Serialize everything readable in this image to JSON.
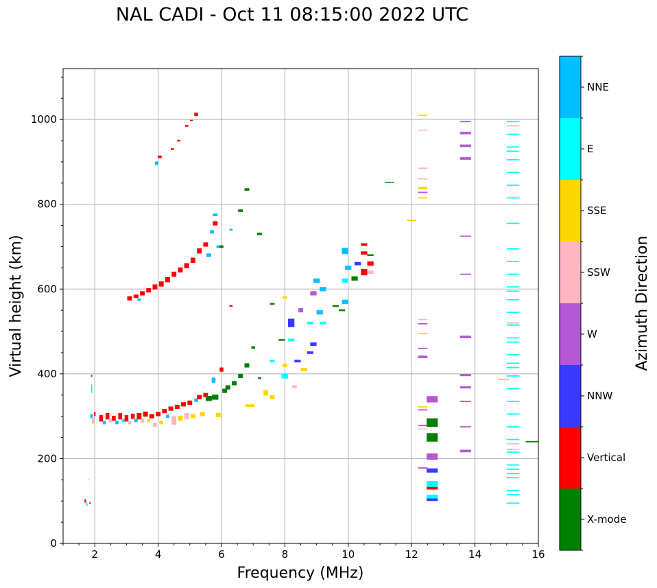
{
  "chart_data": {
    "type": "scatter",
    "title": "NAL CADI - Oct 11 08:15:00 2022 UTC",
    "xlabel": "Frequency (MHz)",
    "ylabel": "Virtual height (km)",
    "xlim": [
      1,
      16
    ],
    "ylim": [
      0,
      1120
    ],
    "xticks": [
      2,
      4,
      6,
      8,
      10,
      12,
      14,
      16
    ],
    "yticks": [
      0,
      200,
      400,
      600,
      800,
      1000
    ],
    "grid": true,
    "colorbar": {
      "label": "Azimuth Direction",
      "categories": [
        {
          "name": "X-mode",
          "color": "#008000"
        },
        {
          "name": "Vertical",
          "color": "#ff0000"
        },
        {
          "name": "NNW",
          "color": "#3a3aff"
        },
        {
          "name": "W",
          "color": "#b558d6"
        },
        {
          "name": "SSW",
          "color": "#ffb6c1"
        },
        {
          "name": "SSE",
          "color": "#ffd700"
        },
        {
          "name": "E",
          "color": "#00ffff"
        },
        {
          "name": "NNE",
          "color": "#00bfff"
        }
      ]
    },
    "point_format": [
      "frequency_MHz",
      "height_km",
      "category_index",
      "freq_span_MHz",
      "height_span_km"
    ],
    "points": [
      [
        1.7,
        100,
        1,
        0.05,
        8
      ],
      [
        1.75,
        92,
        6,
        0.05,
        6
      ],
      [
        1.8,
        150,
        4,
        0.04,
        3
      ],
      [
        1.85,
        95,
        1,
        0.04,
        5
      ],
      [
        1.9,
        395,
        2,
        0.04,
        5
      ],
      [
        1.9,
        365,
        6,
        0.04,
        20
      ],
      [
        1.9,
        300,
        7,
        0.08,
        10
      ],
      [
        1.95,
        290,
        4,
        0.08,
        15
      ],
      [
        2.0,
        305,
        1,
        0.05,
        10
      ],
      [
        2.2,
        295,
        1,
        0.12,
        15
      ],
      [
        2.3,
        285,
        7,
        0.1,
        8
      ],
      [
        2.4,
        300,
        1,
        0.12,
        15
      ],
      [
        2.5,
        290,
        4,
        0.1,
        10
      ],
      [
        2.6,
        295,
        1,
        0.12,
        12
      ],
      [
        2.7,
        285,
        7,
        0.1,
        8
      ],
      [
        2.8,
        300,
        1,
        0.12,
        15
      ],
      [
        2.9,
        290,
        6,
        0.1,
        8
      ],
      [
        3.0,
        295,
        1,
        0.12,
        15
      ],
      [
        3.1,
        285,
        4,
        0.1,
        8
      ],
      [
        3.2,
        300,
        1,
        0.12,
        12
      ],
      [
        3.3,
        290,
        7,
        0.1,
        8
      ],
      [
        3.4,
        300,
        1,
        0.15,
        15
      ],
      [
        3.5,
        290,
        4,
        0.1,
        10
      ],
      [
        3.6,
        305,
        1,
        0.15,
        12
      ],
      [
        3.7,
        290,
        5,
        0.1,
        8
      ],
      [
        3.8,
        300,
        1,
        0.15,
        10
      ],
      [
        3.9,
        280,
        4,
        0.12,
        10
      ],
      [
        4.0,
        305,
        1,
        0.15,
        10
      ],
      [
        4.1,
        285,
        5,
        0.12,
        8
      ],
      [
        4.2,
        312,
        1,
        0.15,
        10
      ],
      [
        4.3,
        300,
        7,
        0.1,
        8
      ],
      [
        4.4,
        318,
        1,
        0.15,
        10
      ],
      [
        4.5,
        290,
        4,
        0.15,
        20
      ],
      [
        4.6,
        322,
        1,
        0.15,
        10
      ],
      [
        4.7,
        295,
        5,
        0.15,
        12
      ],
      [
        4.8,
        328,
        1,
        0.15,
        10
      ],
      [
        4.9,
        300,
        4,
        0.15,
        15
      ],
      [
        5.0,
        332,
        1,
        0.15,
        10
      ],
      [
        5.1,
        300,
        5,
        0.15,
        10
      ],
      [
        5.2,
        338,
        7,
        0.12,
        8
      ],
      [
        5.3,
        345,
        1,
        0.15,
        10
      ],
      [
        5.4,
        305,
        5,
        0.15,
        10
      ],
      [
        5.5,
        350,
        1,
        0.15,
        10
      ],
      [
        5.6,
        342,
        0,
        0.2,
        12
      ],
      [
        5.75,
        385,
        7,
        0.12,
        12
      ],
      [
        5.8,
        345,
        0,
        0.2,
        12
      ],
      [
        5.9,
        303,
        5,
        0.15,
        10
      ],
      [
        6.0,
        410,
        1,
        0.12,
        10
      ],
      [
        6.1,
        360,
        0,
        0.15,
        10
      ],
      [
        6.2,
        368,
        0,
        0.15,
        10
      ],
      [
        6.4,
        378,
        0,
        0.15,
        10
      ],
      [
        6.6,
        395,
        0,
        0.15,
        10
      ],
      [
        6.8,
        420,
        0,
        0.15,
        10
      ],
      [
        6.9,
        325,
        5,
        0.3,
        6
      ],
      [
        7.0,
        462,
        0,
        0.12,
        6
      ],
      [
        7.2,
        390,
        0,
        0.1,
        4
      ],
      [
        7.4,
        355,
        5,
        0.15,
        12
      ],
      [
        7.6,
        345,
        5,
        0.15,
        10
      ],
      [
        7.6,
        430,
        6,
        0.15,
        6
      ],
      [
        7.6,
        565,
        0,
        0.15,
        4
      ],
      [
        7.9,
        480,
        0,
        0.2,
        4
      ],
      [
        8.0,
        395,
        6,
        0.2,
        12
      ],
      [
        8.0,
        420,
        5,
        0.15,
        8
      ],
      [
        8.0,
        580,
        5,
        0.15,
        6
      ],
      [
        8.2,
        520,
        2,
        0.2,
        20
      ],
      [
        8.2,
        480,
        6,
        0.2,
        6
      ],
      [
        8.3,
        370,
        4,
        0.15,
        6
      ],
      [
        8.4,
        430,
        2,
        0.2,
        6
      ],
      [
        8.5,
        550,
        3,
        0.15,
        10
      ],
      [
        8.6,
        410,
        5,
        0.2,
        8
      ],
      [
        8.8,
        450,
        2,
        0.2,
        6
      ],
      [
        8.8,
        520,
        6,
        0.2,
        6
      ],
      [
        8.9,
        470,
        2,
        0.2,
        8
      ],
      [
        8.9,
        590,
        3,
        0.2,
        10
      ],
      [
        9.0,
        620,
        7,
        0.2,
        10
      ],
      [
        9.1,
        545,
        7,
        0.2,
        10
      ],
      [
        9.2,
        600,
        7,
        0.2,
        10
      ],
      [
        9.2,
        520,
        6,
        0.2,
        6
      ],
      [
        9.6,
        560,
        0,
        0.2,
        4
      ],
      [
        9.8,
        550,
        0,
        0.2,
        4
      ],
      [
        9.9,
        690,
        7,
        0.2,
        15
      ],
      [
        9.9,
        620,
        6,
        0.2,
        10
      ],
      [
        9.9,
        570,
        7,
        0.2,
        10
      ],
      [
        10.0,
        650,
        7,
        0.2,
        10
      ],
      [
        10.2,
        625,
        0,
        0.2,
        10
      ],
      [
        10.3,
        660,
        2,
        0.2,
        8
      ],
      [
        10.5,
        640,
        1,
        0.2,
        15
      ],
      [
        10.5,
        705,
        1,
        0.2,
        6
      ],
      [
        10.5,
        685,
        1,
        0.2,
        8
      ],
      [
        10.7,
        660,
        1,
        0.2,
        10
      ],
      [
        10.7,
        640,
        4,
        0.2,
        8
      ],
      [
        10.7,
        680,
        0,
        0.2,
        4
      ],
      [
        3.1,
        578,
        1,
        0.15,
        10
      ],
      [
        3.3,
        583,
        1,
        0.15,
        8
      ],
      [
        3.4,
        575,
        7,
        0.1,
        6
      ],
      [
        3.5,
        590,
        1,
        0.15,
        10
      ],
      [
        3.7,
        597,
        1,
        0.15,
        10
      ],
      [
        3.9,
        605,
        1,
        0.15,
        12
      ],
      [
        4.1,
        612,
        1,
        0.15,
        12
      ],
      [
        4.3,
        622,
        1,
        0.15,
        12
      ],
      [
        4.5,
        635,
        1,
        0.15,
        12
      ],
      [
        4.7,
        645,
        1,
        0.15,
        12
      ],
      [
        4.9,
        655,
        1,
        0.15,
        12
      ],
      [
        5.1,
        668,
        1,
        0.15,
        12
      ],
      [
        5.3,
        690,
        1,
        0.15,
        12
      ],
      [
        5.5,
        705,
        1,
        0.15,
        10
      ],
      [
        5.6,
        680,
        7,
        0.15,
        8
      ],
      [
        5.7,
        735,
        7,
        0.12,
        8
      ],
      [
        5.8,
        755,
        1,
        0.15,
        10
      ],
      [
        5.8,
        775,
        7,
        0.15,
        6
      ],
      [
        5.9,
        700,
        7,
        0.12,
        6
      ],
      [
        6.0,
        700,
        0,
        0.12,
        6
      ],
      [
        6.3,
        560,
        1,
        0.1,
        4
      ],
      [
        6.3,
        740,
        7,
        0.1,
        4
      ],
      [
        6.6,
        785,
        0,
        0.15,
        6
      ],
      [
        6.8,
        835,
        0,
        0.15,
        6
      ],
      [
        7.2,
        730,
        0,
        0.15,
        6
      ],
      [
        3.95,
        897,
        7,
        0.1,
        8
      ],
      [
        4.05,
        912,
        1,
        0.12,
        6
      ],
      [
        4.45,
        930,
        1,
        0.1,
        4
      ],
      [
        4.65,
        950,
        1,
        0.1,
        4
      ],
      [
        4.9,
        985,
        1,
        0.1,
        4
      ],
      [
        5.05,
        998,
        1,
        0.1,
        2
      ],
      [
        5.2,
        1012,
        1,
        0.12,
        8
      ],
      [
        11.3,
        852,
        0,
        0.3,
        2
      ],
      [
        12.0,
        762,
        5,
        0.3,
        3
      ],
      [
        12.35,
        1010,
        5,
        0.3,
        3
      ],
      [
        12.35,
        975,
        4,
        0.3,
        2
      ],
      [
        12.35,
        885,
        4,
        0.3,
        3
      ],
      [
        12.35,
        860,
        4,
        0.3,
        3
      ],
      [
        12.35,
        838,
        5,
        0.3,
        6
      ],
      [
        12.35,
        828,
        3,
        0.3,
        3
      ],
      [
        12.35,
        815,
        5,
        0.3,
        3
      ],
      [
        12.35,
        528,
        4,
        0.3,
        3
      ],
      [
        12.35,
        518,
        3,
        0.3,
        3
      ],
      [
        12.35,
        495,
        5,
        0.3,
        3
      ],
      [
        12.35,
        460,
        3,
        0.3,
        3
      ],
      [
        12.35,
        440,
        3,
        0.3,
        6
      ],
      [
        12.35,
        322,
        5,
        0.3,
        3
      ],
      [
        12.35,
        315,
        3,
        0.3,
        3
      ],
      [
        12.35,
        278,
        3,
        0.3,
        3
      ],
      [
        12.35,
        270,
        4,
        0.3,
        2
      ],
      [
        12.35,
        178,
        3,
        0.3,
        3
      ],
      [
        12.65,
        340,
        3,
        0.35,
        15
      ],
      [
        12.65,
        285,
        0,
        0.35,
        20
      ],
      [
        12.65,
        250,
        0,
        0.35,
        20
      ],
      [
        12.65,
        205,
        3,
        0.35,
        15
      ],
      [
        12.65,
        172,
        2,
        0.35,
        10
      ],
      [
        12.65,
        140,
        6,
        0.35,
        15
      ],
      [
        12.65,
        130,
        1,
        0.35,
        6
      ],
      [
        12.65,
        110,
        6,
        0.35,
        10
      ],
      [
        12.65,
        103,
        2,
        0.35,
        6
      ],
      [
        13.7,
        995,
        3,
        0.35,
        3
      ],
      [
        13.7,
        968,
        3,
        0.35,
        6
      ],
      [
        13.7,
        938,
        3,
        0.35,
        6
      ],
      [
        13.7,
        908,
        3,
        0.35,
        6
      ],
      [
        13.7,
        725,
        3,
        0.35,
        2
      ],
      [
        13.7,
        635,
        3,
        0.35,
        3
      ],
      [
        13.7,
        487,
        3,
        0.35,
        6
      ],
      [
        13.7,
        397,
        3,
        0.35,
        5
      ],
      [
        13.7,
        368,
        3,
        0.35,
        5
      ],
      [
        13.7,
        335,
        3,
        0.35,
        3
      ],
      [
        13.7,
        275,
        3,
        0.35,
        3
      ],
      [
        13.7,
        218,
        3,
        0.35,
        6
      ],
      [
        14.9,
        387,
        5,
        0.35,
        3
      ],
      [
        15.8,
        240,
        0,
        0.4,
        3
      ],
      [
        15.2,
        995,
        6,
        0.4,
        3
      ],
      [
        15.2,
        985,
        4,
        0.4,
        3
      ],
      [
        15.2,
        965,
        6,
        0.4,
        3
      ],
      [
        15.2,
        935,
        6,
        0.4,
        3
      ],
      [
        15.2,
        925,
        6,
        0.4,
        3
      ],
      [
        15.2,
        905,
        6,
        0.4,
        3
      ],
      [
        15.2,
        875,
        6,
        0.4,
        3
      ],
      [
        15.2,
        845,
        6,
        0.4,
        3
      ],
      [
        15.2,
        815,
        6,
        0.4,
        3
      ],
      [
        15.2,
        755,
        6,
        0.4,
        3
      ],
      [
        15.2,
        695,
        6,
        0.4,
        3
      ],
      [
        15.2,
        665,
        6,
        0.4,
        3
      ],
      [
        15.2,
        635,
        6,
        0.4,
        3
      ],
      [
        15.2,
        605,
        6,
        0.4,
        3
      ],
      [
        15.2,
        595,
        6,
        0.4,
        3
      ],
      [
        15.2,
        575,
        6,
        0.4,
        3
      ],
      [
        15.2,
        545,
        6,
        0.4,
        3
      ],
      [
        15.2,
        520,
        4,
        0.4,
        3
      ],
      [
        15.2,
        515,
        6,
        0.4,
        3
      ],
      [
        15.2,
        485,
        6,
        0.4,
        3
      ],
      [
        15.2,
        475,
        6,
        0.4,
        3
      ],
      [
        15.2,
        445,
        6,
        0.4,
        3
      ],
      [
        15.2,
        425,
        6,
        0.4,
        3
      ],
      [
        15.2,
        415,
        6,
        0.4,
        3
      ],
      [
        15.2,
        395,
        6,
        0.4,
        3
      ],
      [
        15.2,
        365,
        6,
        0.4,
        3
      ],
      [
        15.2,
        335,
        6,
        0.4,
        3
      ],
      [
        15.2,
        305,
        6,
        0.4,
        3
      ],
      [
        15.2,
        275,
        6,
        0.4,
        3
      ],
      [
        15.2,
        245,
        6,
        0.4,
        3
      ],
      [
        15.2,
        235,
        4,
        0.4,
        3
      ],
      [
        15.2,
        222,
        4,
        0.4,
        3
      ],
      [
        15.2,
        215,
        6,
        0.4,
        3
      ],
      [
        15.2,
        185,
        6,
        0.4,
        3
      ],
      [
        15.2,
        175,
        6,
        0.4,
        3
      ],
      [
        15.2,
        165,
        6,
        0.4,
        3
      ],
      [
        15.2,
        155,
        6,
        0.4,
        3
      ],
      [
        15.2,
        125,
        6,
        0.4,
        3
      ],
      [
        15.2,
        115,
        6,
        0.4,
        3
      ],
      [
        15.2,
        95,
        6,
        0.4,
        3
      ]
    ]
  }
}
